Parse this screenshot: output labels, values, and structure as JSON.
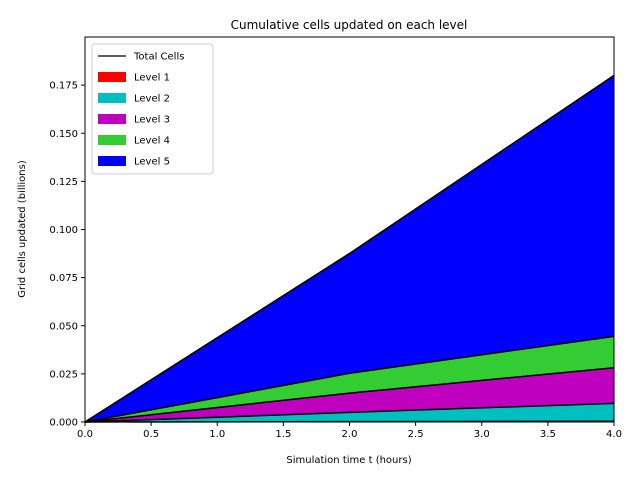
{
  "chart_data": {
    "type": "area",
    "title": "Cumulative cells updated on each level",
    "xlabel": "Simulation time t (hours)",
    "ylabel": "Grid cells updated (billions)",
    "xlim": [
      0,
      4
    ],
    "ylim": [
      0,
      0.2
    ],
    "x": [
      0,
      2,
      4
    ],
    "xticks": [
      "0.0",
      "0.5",
      "1.0",
      "1.5",
      "2.0",
      "2.5",
      "3.0",
      "3.5",
      "4.0"
    ],
    "yticks": [
      "0.000",
      "0.025",
      "0.050",
      "0.075",
      "0.100",
      "0.125",
      "0.150",
      "0.175"
    ],
    "legend_placement": "upper-left",
    "grid": false,
    "total": {
      "name": "Total Cells",
      "color": "#000000",
      "values": [
        0,
        0.0875,
        0.18
      ]
    },
    "series": [
      {
        "name": "Level 1",
        "color": "#ff0000",
        "values": [
          0,
          0.0002,
          0.0004
        ]
      },
      {
        "name": "Level 2",
        "color": "#00bfbf",
        "values": [
          0,
          0.0048,
          0.0093
        ]
      },
      {
        "name": "Level 3",
        "color": "#bf00bf",
        "values": [
          0,
          0.01,
          0.0185
        ]
      },
      {
        "name": "Level 4",
        "color": "#33cc33",
        "values": [
          0,
          0.0103,
          0.0163
        ]
      },
      {
        "name": "Level 5",
        "color": "#0000ff",
        "values": [
          0,
          0.0622,
          0.1355
        ]
      }
    ]
  }
}
